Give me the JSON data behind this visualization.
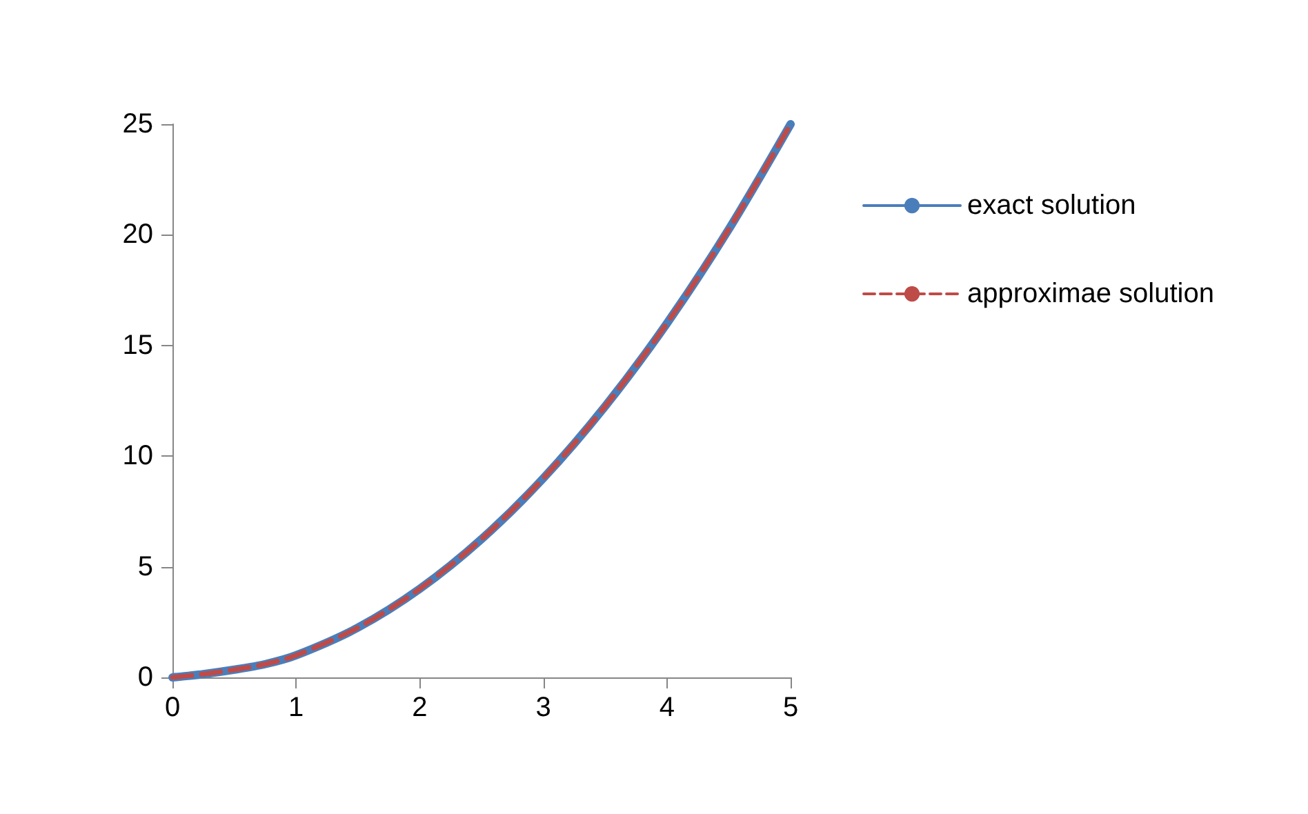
{
  "chart_data": {
    "type": "line",
    "x": [
      0,
      0.25,
      0.5,
      0.75,
      1,
      1.5,
      2,
      2.5,
      3,
      3.5,
      4,
      4.5,
      5
    ],
    "series": [
      {
        "name": "exact solution",
        "color": "#4a7ebb",
        "line_style": "solid",
        "values": [
          0,
          0.15,
          0.35,
          0.6,
          1,
          2.25,
          4,
          6.25,
          9,
          12.25,
          16,
          20.25,
          25
        ]
      },
      {
        "name": "approximae solution",
        "color": "#be4b48",
        "line_style": "dashed",
        "values": [
          0,
          0.15,
          0.35,
          0.6,
          1,
          2.25,
          4,
          6.25,
          9,
          12.25,
          16,
          20.25,
          25
        ]
      }
    ],
    "xlim": [
      0,
      5
    ],
    "xticks": [
      0,
      1,
      2,
      3,
      4,
      5
    ],
    "ylim": [
      0,
      25
    ],
    "yticks": [
      0,
      5,
      10,
      15,
      20,
      25
    ],
    "grid": false,
    "legend": "right",
    "marker": "none"
  }
}
